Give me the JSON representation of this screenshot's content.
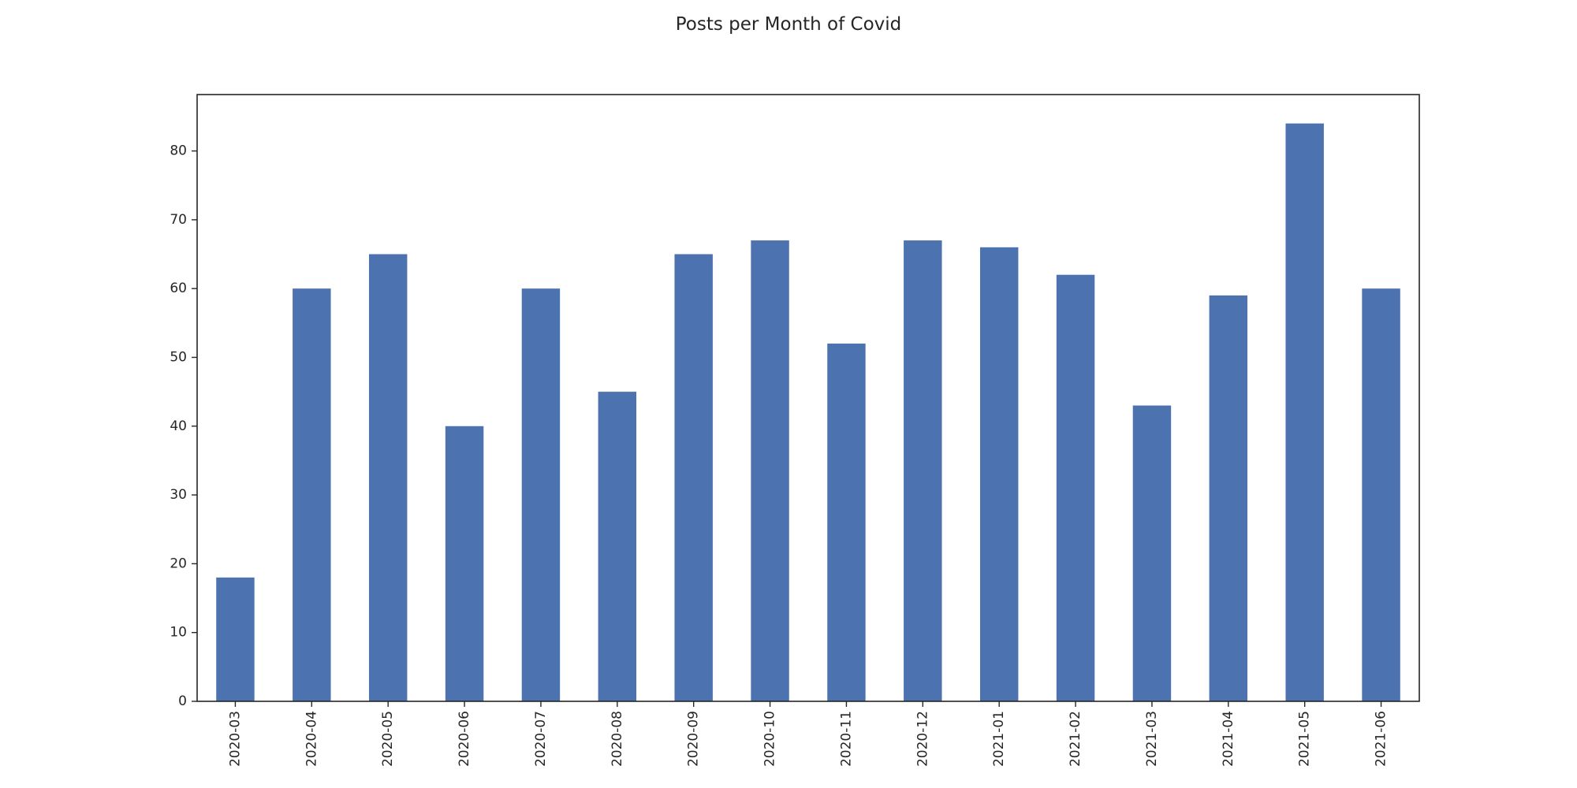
{
  "chart_data": {
    "type": "bar",
    "title": "Posts per Month of Covid",
    "xlabel": "",
    "ylabel": "",
    "categories": [
      "2020-03",
      "2020-04",
      "2020-05",
      "2020-06",
      "2020-07",
      "2020-08",
      "2020-09",
      "2020-10",
      "2020-11",
      "2020-12",
      "2021-01",
      "2021-02",
      "2021-03",
      "2021-04",
      "2021-05",
      "2021-06"
    ],
    "values": [
      18,
      60,
      65,
      40,
      60,
      45,
      65,
      67,
      52,
      67,
      66,
      62,
      43,
      59,
      84,
      60
    ],
    "ylim": [
      0,
      88.2
    ],
    "yticks": [
      0,
      10,
      20,
      30,
      40,
      50,
      60,
      70,
      80
    ],
    "grid": false,
    "legend": "none",
    "bar_color": "#4c72b0"
  }
}
